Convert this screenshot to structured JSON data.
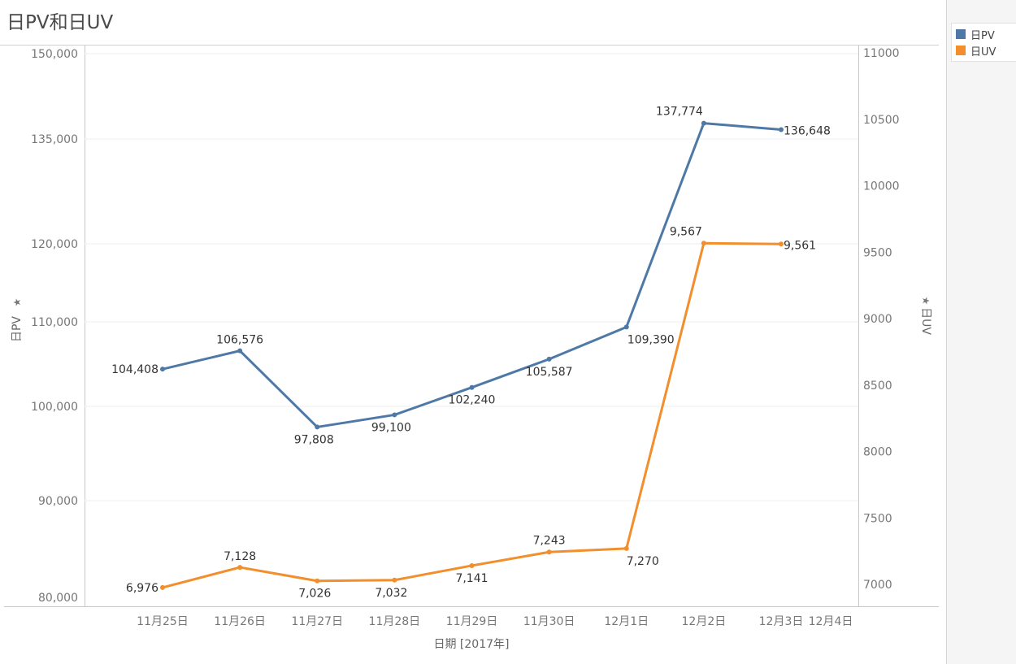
{
  "title": "日PV和日UV",
  "legend": [
    {
      "label": "日PV",
      "color": "#4e79a7"
    },
    {
      "label": "日UV",
      "color": "#f28e2b"
    }
  ],
  "chart_data": {
    "type": "line",
    "title": "日PV和日UV",
    "xlabel": "日期 [2017年]",
    "x_ticks": [
      "11月25日",
      "11月26日",
      "11月27日",
      "11月28日",
      "11月29日",
      "11月30日",
      "12月1日",
      "12月2日",
      "12月3日",
      "12月4日"
    ],
    "categories": [
      "11月25日",
      "11月26日",
      "11月27日",
      "11月28日",
      "11月29日",
      "11月30日",
      "12月1日",
      "12月2日",
      "12月3日"
    ],
    "y_left": {
      "label": "日PV",
      "ticks": [
        80000,
        90000,
        100000,
        110000,
        120000,
        135000,
        150000
      ],
      "tick_labels": [
        "80,000",
        "90,000",
        "100,000",
        "110,000",
        "120,000",
        "135,000",
        "150,000"
      ]
    },
    "y_right": {
      "label": "日UV",
      "ticks": [
        7000,
        7500,
        8000,
        8500,
        9000,
        9500,
        10000,
        10500,
        11000
      ],
      "tick_labels": [
        "7000",
        "7500",
        "8000",
        "8500",
        "9000",
        "9500",
        "10000",
        "10500",
        "11000"
      ]
    },
    "series": [
      {
        "name": "日PV",
        "axis": "left",
        "color": "#4e79a7",
        "values": [
          104408,
          106576,
          97808,
          99100,
          102240,
          105587,
          109390,
          137774,
          136648
        ],
        "labels": [
          "104,408",
          "106,576",
          "97,808",
          "99,100",
          "102,240",
          "105,587",
          "109,390",
          "137,774",
          "136,648"
        ]
      },
      {
        "name": "日UV",
        "axis": "right",
        "color": "#f28e2b",
        "values": [
          6976,
          7128,
          7026,
          7032,
          7141,
          7243,
          7270,
          9567,
          9561
        ],
        "labels": [
          "6,976",
          "7,128",
          "7,026",
          "7,032",
          "7,141",
          "7,243",
          "7,270",
          "9,567",
          "9,561"
        ]
      }
    ],
    "grid": true
  }
}
